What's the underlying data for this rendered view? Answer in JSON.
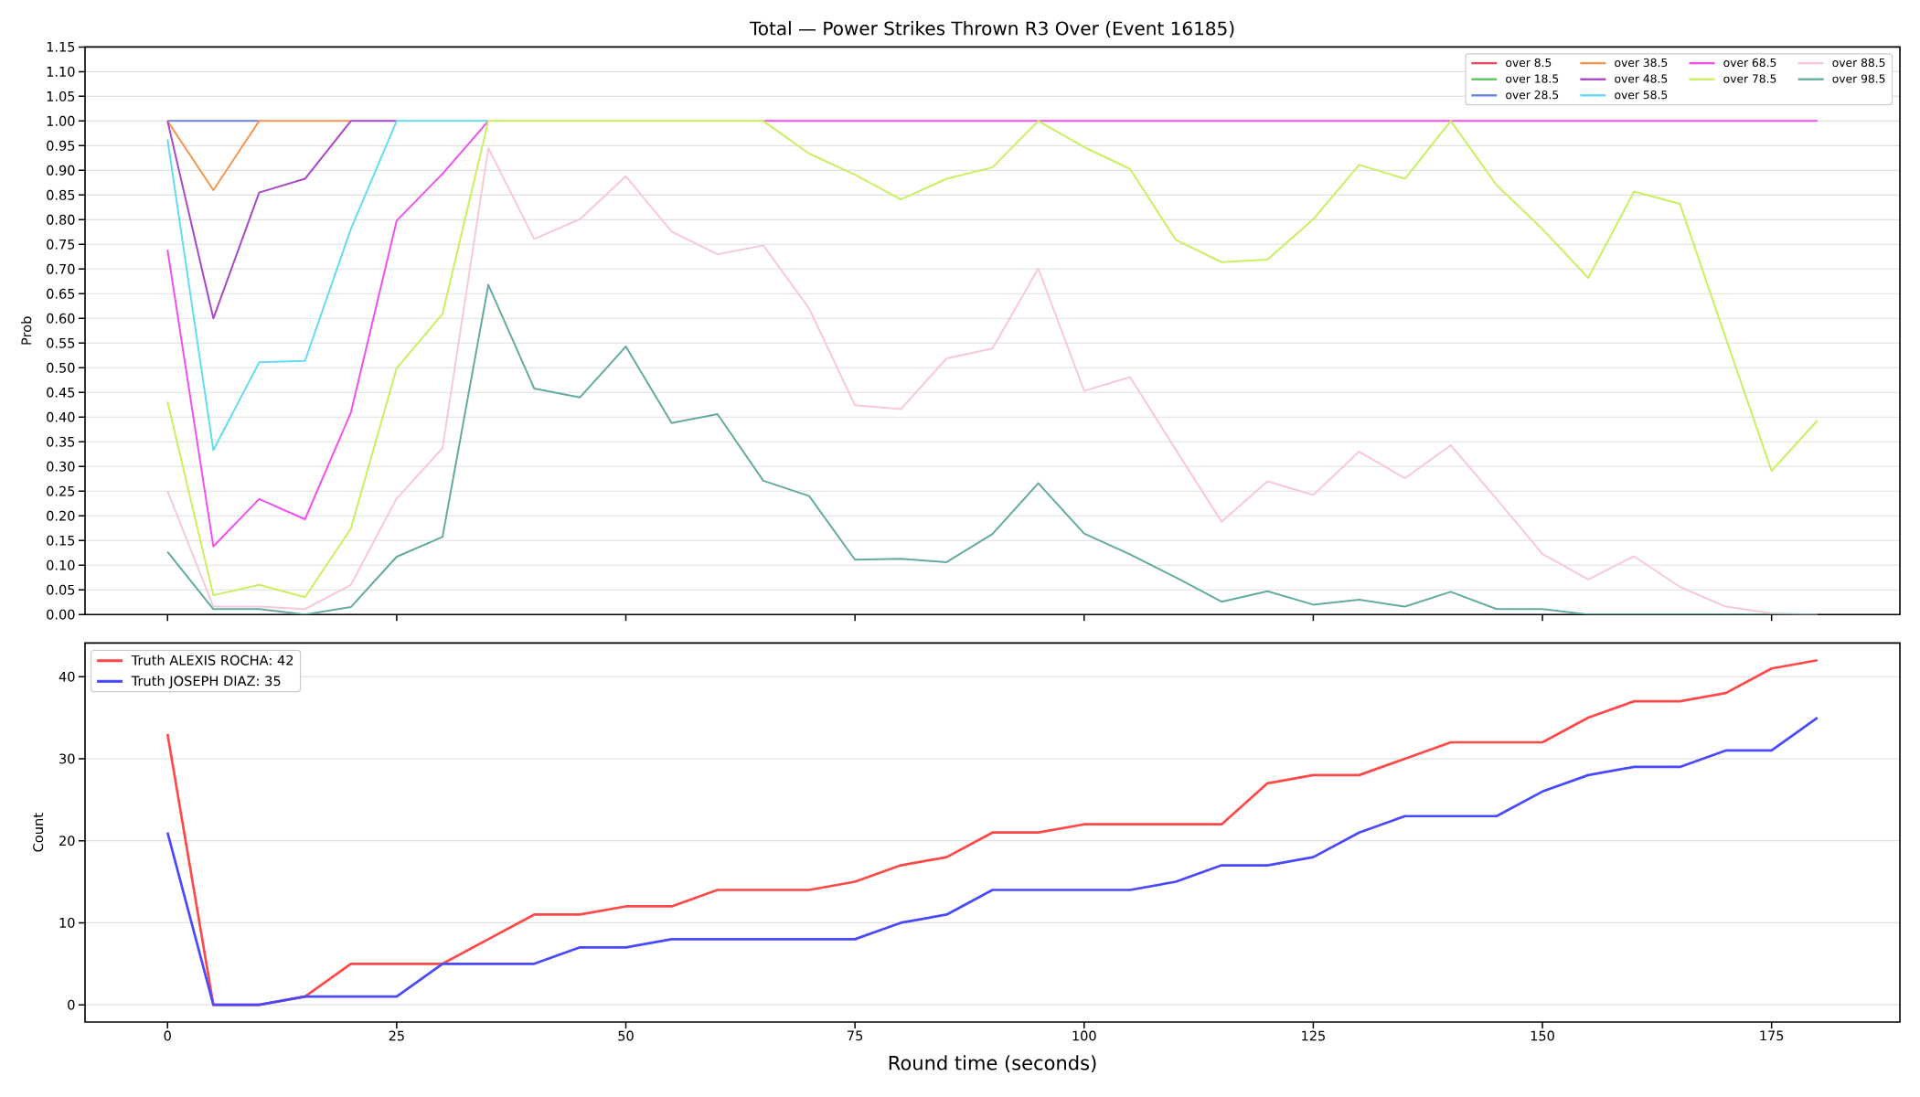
{
  "chart_data": [
    {
      "type": "line",
      "title": "Total — Power Strikes Thrown R3 Over (Event 16185)",
      "ylabel": "Prob",
      "x": [
        0,
        5,
        10,
        15,
        20,
        25,
        30,
        35,
        40,
        45,
        50,
        55,
        60,
        65,
        70,
        75,
        80,
        85,
        90,
        95,
        100,
        105,
        110,
        115,
        120,
        125,
        130,
        135,
        140,
        145,
        150,
        155,
        160,
        165,
        170,
        175,
        180
      ],
      "series": [
        {
          "name": "over 8.5",
          "color": "#e84a64",
          "values": [
            null,
            null,
            null,
            null,
            null,
            null,
            null,
            null,
            null,
            null,
            null,
            null,
            null,
            null,
            null,
            null,
            null,
            null,
            null,
            null,
            null,
            null,
            null,
            null,
            null,
            null,
            null,
            null,
            null,
            null,
            null,
            null,
            null,
            null,
            null,
            null,
            null
          ]
        },
        {
          "name": "over 18.5",
          "color": "#5cc464",
          "values": [
            null,
            null,
            null,
            null,
            null,
            null,
            null,
            null,
            null,
            null,
            null,
            null,
            null,
            null,
            null,
            null,
            null,
            null,
            null,
            null,
            null,
            null,
            null,
            null,
            null,
            null,
            null,
            null,
            null,
            null,
            null,
            null,
            null,
            null,
            null,
            null,
            null
          ]
        },
        {
          "name": "over 28.5",
          "color": "#6a84e0",
          "values": [
            1.0,
            1.0,
            1.0,
            null,
            null,
            null,
            null,
            null,
            null,
            null,
            null,
            null,
            null,
            null,
            null,
            null,
            null,
            null,
            null,
            null,
            null,
            null,
            null,
            null,
            null,
            null,
            null,
            null,
            null,
            null,
            null,
            null,
            null,
            null,
            null,
            null,
            null
          ]
        },
        {
          "name": "over 38.5",
          "color": "#f49650",
          "values": [
            1.0,
            0.86,
            1.0,
            1.0,
            1.0,
            null,
            null,
            null,
            null,
            null,
            null,
            null,
            null,
            null,
            null,
            null,
            null,
            null,
            null,
            null,
            null,
            null,
            null,
            null,
            null,
            null,
            null,
            null,
            null,
            null,
            null,
            null,
            null,
            null,
            null,
            null,
            null
          ]
        },
        {
          "name": "over 48.5",
          "color": "#a848c8",
          "values": [
            1.0,
            0.6,
            0.855,
            0.883,
            1.0,
            1.0,
            null,
            null,
            null,
            null,
            null,
            null,
            null,
            null,
            null,
            null,
            null,
            null,
            null,
            null,
            null,
            null,
            null,
            null,
            null,
            null,
            null,
            null,
            null,
            null,
            null,
            null,
            null,
            null,
            null,
            null,
            null
          ]
        },
        {
          "name": "over 58.5",
          "color": "#64dcf0",
          "values": [
            0.963,
            0.333,
            0.511,
            0.514,
            0.781,
            1.0,
            1.0,
            1.0,
            null,
            null,
            null,
            null,
            null,
            null,
            null,
            null,
            null,
            null,
            null,
            null,
            null,
            null,
            null,
            null,
            null,
            null,
            null,
            null,
            null,
            null,
            null,
            null,
            null,
            null,
            null,
            null,
            null
          ]
        },
        {
          "name": "over 68.5",
          "color": "#f050f0",
          "values": [
            0.739,
            0.138,
            0.234,
            0.193,
            0.409,
            0.798,
            0.893,
            1.0,
            null,
            null,
            null,
            null,
            null,
            1.0,
            1.0,
            1.0,
            1.0,
            1.0,
            1.0,
            1.0,
            1.0,
            1.0,
            1.0,
            1.0,
            1.0,
            1.0,
            1.0,
            1.0,
            1.0,
            1.0,
            1.0,
            1.0,
            1.0,
            1.0,
            1.0,
            1.0,
            1.0
          ]
        },
        {
          "name": "over 78.5",
          "color": "#c8f060",
          "values": [
            0.431,
            0.039,
            0.06,
            0.035,
            0.174,
            0.499,
            0.609,
            1.0,
            1.0,
            1.0,
            1.0,
            1.0,
            1.0,
            1.0,
            0.934,
            0.891,
            0.841,
            0.883,
            0.906,
            1.0,
            0.947,
            0.903,
            0.759,
            0.714,
            0.719,
            0.801,
            0.911,
            0.883,
            1.0,
            0.87,
            0.781,
            0.682,
            0.857,
            0.832,
            0.56,
            0.291,
            0.393
          ]
        },
        {
          "name": "over 88.5",
          "color": "#f8c8d8",
          "values": [
            0.25,
            0.016,
            0.016,
            0.011,
            0.06,
            0.235,
            0.337,
            0.945,
            0.761,
            0.801,
            0.888,
            0.776,
            0.73,
            0.748,
            0.62,
            0.424,
            0.416,
            0.519,
            0.539,
            0.701,
            0.453,
            0.481,
            0.334,
            0.188,
            0.27,
            0.242,
            0.33,
            0.276,
            0.343,
            0.234,
            0.123,
            0.071,
            0.118,
            0.056,
            0.016,
            0.002,
            0.0
          ]
        },
        {
          "name": "over 98.5",
          "color": "#64aaa0",
          "values": [
            0.127,
            0.011,
            0.011,
            0.0,
            0.015,
            0.117,
            0.157,
            0.668,
            0.458,
            0.44,
            0.543,
            0.388,
            0.406,
            0.271,
            0.24,
            0.111,
            0.113,
            0.106,
            0.163,
            0.266,
            0.164,
            0.122,
            0.075,
            0.026,
            0.047,
            0.02,
            0.03,
            0.016,
            0.046,
            0.011,
            0.011,
            0.0,
            0.0,
            0.0,
            0.0,
            0.0,
            0.0
          ]
        }
      ],
      "xlim": [
        -9,
        189
      ],
      "ylim": [
        0,
        1.15
      ],
      "xticks": [
        0,
        25,
        50,
        75,
        100,
        125,
        150,
        175
      ],
      "yticks": [
        {
          "value": 0,
          "label": "0.00"
        },
        {
          "value": 0.05,
          "label": "0.05"
        },
        {
          "value": 0.1,
          "label": "0.10"
        },
        {
          "value": 0.15,
          "label": "0.15"
        },
        {
          "value": 0.2,
          "label": "0.20"
        },
        {
          "value": 0.25,
          "label": "0.25"
        },
        {
          "value": 0.3,
          "label": "0.30"
        },
        {
          "value": 0.35,
          "label": "0.35"
        },
        {
          "value": 0.4,
          "label": "0.40"
        },
        {
          "value": 0.45,
          "label": "0.45"
        },
        {
          "value": 0.5,
          "label": "0.50"
        },
        {
          "value": 0.55,
          "label": "0.55"
        },
        {
          "value": 0.6,
          "label": "0.60"
        },
        {
          "value": 0.65,
          "label": "0.65"
        },
        {
          "value": 0.7,
          "label": "0.70"
        },
        {
          "value": 0.75,
          "label": "0.75"
        },
        {
          "value": 0.8,
          "label": "0.80"
        },
        {
          "value": 0.85,
          "label": "0.85"
        },
        {
          "value": 0.9,
          "label": "0.90"
        },
        {
          "value": 0.95,
          "label": "0.95"
        },
        {
          "value": 1.0,
          "label": "1.00"
        },
        {
          "value": 1.05,
          "label": "1.05"
        },
        {
          "value": 1.1,
          "label": "1.10"
        },
        {
          "value": 1.15,
          "label": "1.15"
        }
      ],
      "tick_labels": "y",
      "grid": "y",
      "legend": "top right"
    },
    {
      "type": "line",
      "xlabel": "Round time (seconds)",
      "ylabel": "Count",
      "x": [
        0,
        5,
        10,
        15,
        20,
        25,
        30,
        35,
        40,
        45,
        50,
        55,
        60,
        65,
        70,
        75,
        80,
        85,
        90,
        95,
        100,
        105,
        110,
        115,
        120,
        125,
        130,
        135,
        140,
        145,
        150,
        155,
        160,
        165,
        170,
        175,
        180
      ],
      "series": [
        {
          "name": "Truth ALEXIS ROCHA: 42",
          "color": "#ff4848",
          "values": [
            33,
            0,
            0,
            1,
            5,
            5,
            5,
            8,
            11,
            11,
            12,
            12,
            14,
            14,
            14,
            15,
            17,
            18,
            21,
            21,
            22,
            22,
            22,
            22,
            27,
            28,
            28,
            30,
            32,
            32,
            32,
            35,
            37,
            37,
            38,
            41,
            42
          ]
        },
        {
          "name": "Truth JOSEPH DIAZ: 35",
          "color": "#4848ff",
          "values": [
            21,
            0,
            0,
            1,
            1,
            1,
            5,
            5,
            5,
            7,
            7,
            8,
            8,
            8,
            8,
            8,
            10,
            11,
            14,
            14,
            14,
            14,
            15,
            17,
            17,
            18,
            21,
            23,
            23,
            23,
            26,
            28,
            29,
            29,
            31,
            31,
            35
          ]
        }
      ],
      "xlim": [
        -9,
        189
      ],
      "ylim": [
        -2.1,
        44.1
      ],
      "xticks": [
        0,
        25,
        50,
        75,
        100,
        125,
        150,
        175
      ],
      "yticks": [
        0,
        10,
        20,
        30,
        40
      ],
      "grid": "y",
      "legend": "top left"
    }
  ]
}
